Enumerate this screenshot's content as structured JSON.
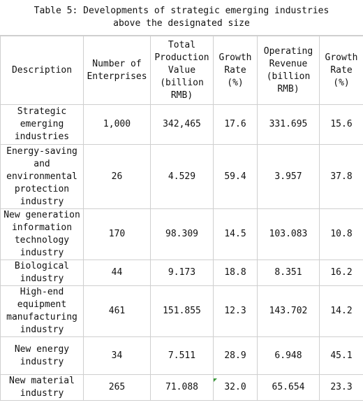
{
  "table": {
    "title_line1": "Table 5: Developments of strategic emerging industries",
    "title_line2": "above the designated size",
    "headers": {
      "description": "Description",
      "enterprises": "Number of Enterprises",
      "production_value": "Total Production Value (billion RMB)",
      "growth_rate_1": "Growth Rate (%)",
      "operating_revenue": "Operating Revenue (billion RMB)",
      "growth_rate_2": "Growth Rate (%)"
    },
    "rows": [
      {
        "description": "Strategic emerging industries",
        "enterprises": "1,000",
        "production_value": "342,465",
        "growth_rate_1": "17.6",
        "operating_revenue": "331.695",
        "growth_rate_2": "15.6"
      },
      {
        "description": "Energy-saving and environmental protection industry",
        "enterprises": "26",
        "production_value": "4.529",
        "growth_rate_1": "59.4",
        "operating_revenue": "3.957",
        "growth_rate_2": "37.8"
      },
      {
        "description": "New generation information technology industry",
        "enterprises": "170",
        "production_value": "98.309",
        "growth_rate_1": "14.5",
        "operating_revenue": "103.083",
        "growth_rate_2": "10.8"
      },
      {
        "description": "Biological industry",
        "enterprises": "44",
        "production_value": "9.173",
        "growth_rate_1": "18.8",
        "operating_revenue": "8.351",
        "growth_rate_2": "16.2"
      },
      {
        "description": "High-end equipment manufacturing industry",
        "enterprises": "461",
        "production_value": "151.855",
        "growth_rate_1": "12.3",
        "operating_revenue": "143.702",
        "growth_rate_2": "14.2"
      },
      {
        "description": "New energy industry",
        "enterprises": "34",
        "production_value": "7.511",
        "growth_rate_1": "28.9",
        "operating_revenue": "6.948",
        "growth_rate_2": "45.1"
      },
      {
        "description": "New material industry",
        "enterprises": "265",
        "production_value": "71.088",
        "growth_rate_1": "32.0",
        "operating_revenue": "65.654",
        "growth_rate_2": "23.3"
      }
    ]
  }
}
